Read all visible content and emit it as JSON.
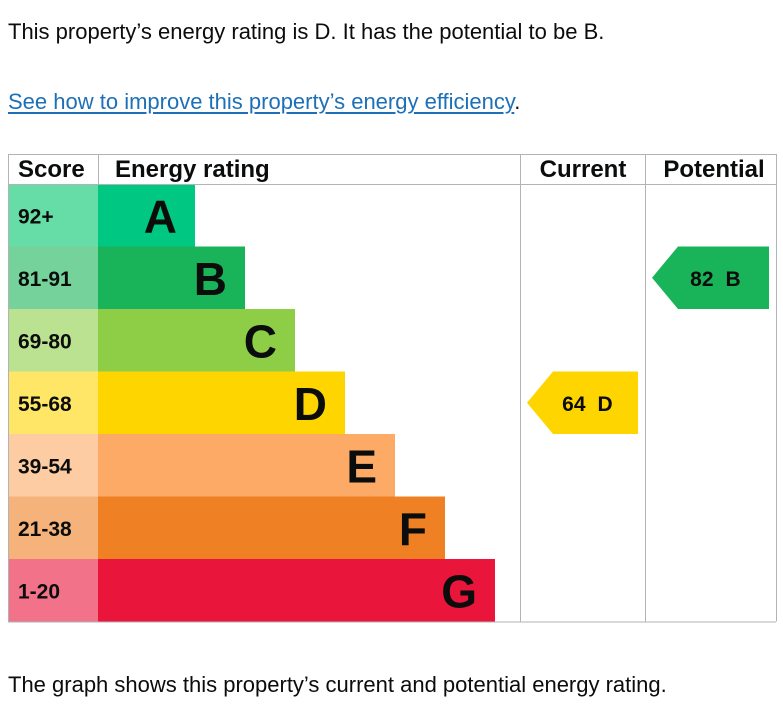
{
  "intro_text": "This property’s energy rating is D. It has the potential to be B.",
  "improve_link": "See how to improve this property’s energy efficiency",
  "improve_link_suffix": ".",
  "footer_text": "The graph shows this property’s current and potential energy rating.",
  "colors": {
    "link": "#1d70b8",
    "grid": "#b1b4b6",
    "text": "#0b0c0c"
  },
  "chart_data": {
    "type": "bar",
    "headers": {
      "score": "Score",
      "rating": "Energy rating",
      "current": "Current",
      "potential": "Potential"
    },
    "bands": [
      {
        "letter": "A",
        "range": "92+",
        "max_score": 100,
        "color": "#00c781",
        "score_color": "#66dda7"
      },
      {
        "letter": "B",
        "range": "81-91",
        "max_score": 91,
        "color": "#19b459",
        "score_color": "#75d29b"
      },
      {
        "letter": "C",
        "range": "69-80",
        "max_score": 80,
        "color": "#8dce46",
        "score_color": "#bbe290"
      },
      {
        "letter": "D",
        "range": "55-68",
        "max_score": 68,
        "color": "#ffd500",
        "score_color": "#ffe666"
      },
      {
        "letter": "E",
        "range": "39-54",
        "max_score": 54,
        "color": "#fcaa65",
        "score_color": "#fdcca3"
      },
      {
        "letter": "F",
        "range": "21-38",
        "max_score": 38,
        "color": "#ef8023",
        "score_color": "#f5b37b"
      },
      {
        "letter": "G",
        "range": "1-20",
        "max_score": 20,
        "color": "#e9153b",
        "score_color": "#f27389"
      }
    ],
    "current": {
      "score": "64",
      "band": "D"
    },
    "potential": {
      "score": "82",
      "band": "B"
    }
  }
}
